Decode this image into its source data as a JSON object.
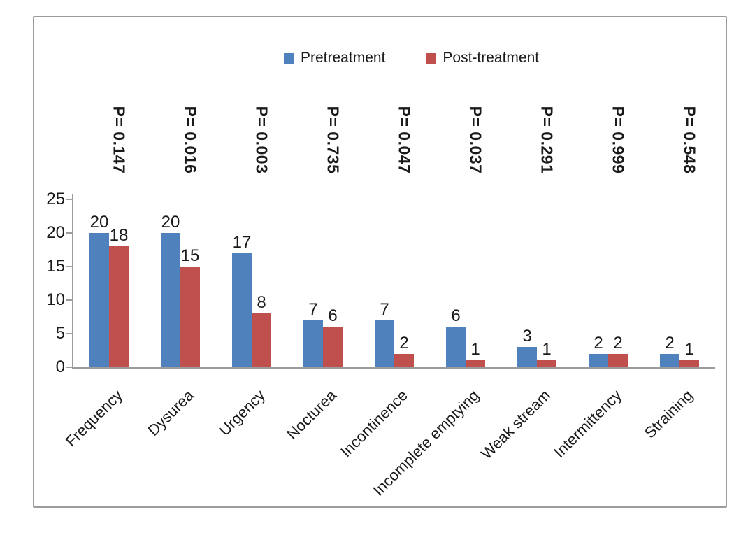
{
  "colors": {
    "pretreatment": "#4F81BD",
    "posttreatment": "#C0504D",
    "axis": "#9c9c9c",
    "text": "#1a1a1a"
  },
  "chart_data": {
    "type": "bar",
    "title": "",
    "xlabel": "",
    "ylabel": "",
    "categories": [
      "Frequency",
      "Dysurea",
      "Urgency",
      "Nocturea",
      "Incontinence",
      "Incomplete emptying",
      "Weak stream",
      "Intermittency",
      "Straining"
    ],
    "series": [
      {
        "name": "Pretreatment",
        "color": "#4F81BD",
        "values": [
          20,
          20,
          17,
          7,
          7,
          6,
          3,
          2,
          2
        ]
      },
      {
        "name": "Post-treatment",
        "color": "#C0504D",
        "values": [
          18,
          15,
          8,
          6,
          2,
          1,
          1,
          2,
          1
        ]
      }
    ],
    "p_values": [
      "P= 0.147",
      "P= 0.016",
      "P= 0.003",
      "P= 0.735",
      "P= 0.047",
      "P= 0.037",
      "P= 0.291",
      "P= 0.999",
      "P= 0.548"
    ],
    "ylim": [
      0,
      25
    ],
    "yticks": [
      0,
      5,
      10,
      15,
      20,
      25
    ],
    "grid": false,
    "legend_position": "top-center",
    "bar_value_labels": true
  }
}
